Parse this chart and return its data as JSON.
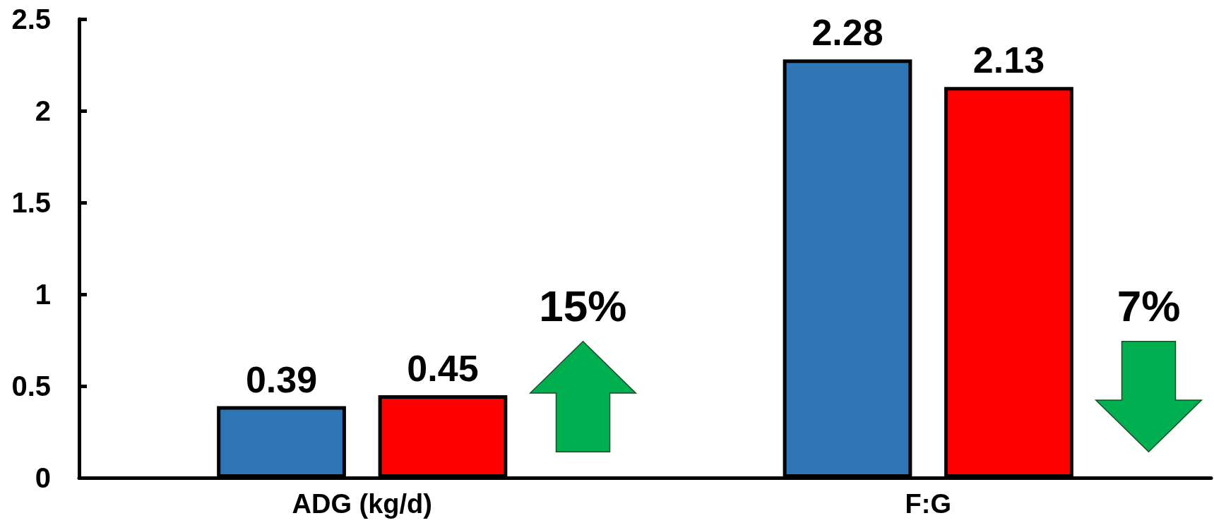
{
  "chart_data": {
    "type": "bar",
    "categories": [
      "ADG (kg/d)",
      "F:G"
    ],
    "series": [
      {
        "color": "#2e75b6",
        "values": [
          0.39,
          2.28
        ]
      },
      {
        "color": "#ff0000",
        "values": [
          0.45,
          2.13
        ]
      }
    ],
    "ylim": [
      0,
      2.5
    ],
    "yticks": [
      0,
      0.5,
      1,
      1.5,
      2,
      2.5
    ],
    "data_labels": true,
    "annotations": [
      "15%",
      "7%"
    ]
  }
}
